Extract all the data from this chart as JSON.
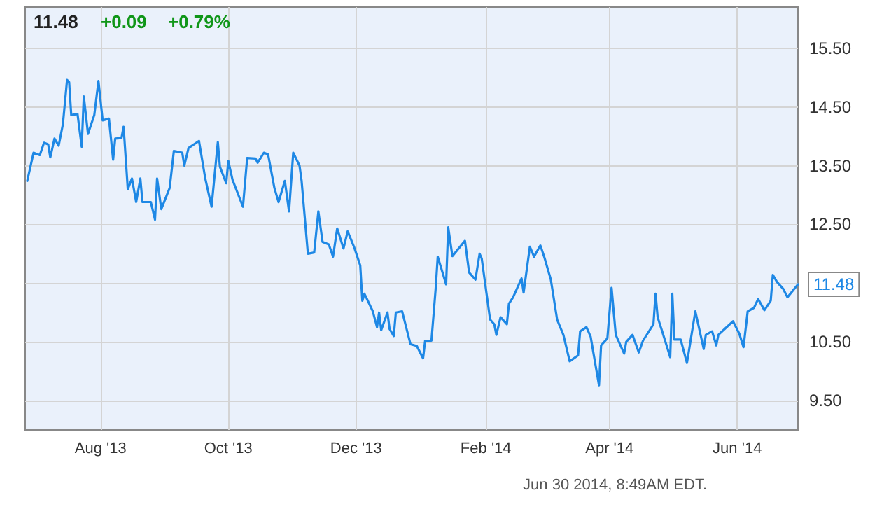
{
  "chart_data": {
    "type": "line",
    "title": "11.48",
    "annotations": [
      "+0.09",
      "+0.79%",
      {
        "text": "11.48",
        "x": "2014-06-30",
        "y": 11.48
      },
      "Jun 30 2014, 8:49AM EDT."
    ],
    "x": [
      "2013-06-27",
      "2013-06-30",
      "2013-07-03",
      "2013-07-05",
      "2013-07-07",
      "2013-07-08",
      "2013-07-10",
      "2013-07-12",
      "2013-07-14",
      "2013-07-16",
      "2013-07-17",
      "2013-07-18",
      "2013-07-21",
      "2013-07-23",
      "2013-07-24",
      "2013-07-26",
      "2013-07-29",
      "2013-07-31",
      "2013-08-02",
      "2013-08-05",
      "2013-08-07",
      "2013-08-08",
      "2013-08-11",
      "2013-08-12",
      "2013-08-14",
      "2013-08-16",
      "2013-08-18",
      "2013-08-20",
      "2013-08-21",
      "2013-08-25",
      "2013-08-27",
      "2013-08-28",
      "2013-08-30",
      "2013-09-03",
      "2013-09-05",
      "2013-09-09",
      "2013-09-10",
      "2013-09-12",
      "2013-09-17",
      "2013-09-20",
      "2013-09-23",
      "2013-09-26",
      "2013-09-27",
      "2013-09-30",
      "2013-10-01",
      "2013-10-03",
      "2013-10-08",
      "2013-10-10",
      "2013-10-14",
      "2013-10-15",
      "2013-10-18",
      "2013-10-20",
      "2013-10-23",
      "2013-10-25",
      "2013-10-28",
      "2013-10-30",
      "2013-11-01",
      "2013-11-04",
      "2013-11-05",
      "2013-11-08",
      "2013-11-11",
      "2013-11-13",
      "2013-11-15",
      "2013-11-18",
      "2013-11-20",
      "2013-11-22",
      "2013-11-25",
      "2013-11-27",
      "2013-11-30",
      "2013-12-03",
      "2013-12-04",
      "2013-12-05",
      "2013-12-09",
      "2013-12-11",
      "2013-12-12",
      "2013-12-13",
      "2013-12-16",
      "2013-12-17",
      "2013-12-19",
      "2013-12-20",
      "2013-12-23",
      "2013-12-27",
      "2013-12-30",
      "2014-01-02",
      "2014-01-03",
      "2014-01-06",
      "2014-01-08",
      "2014-01-09",
      "2014-01-13",
      "2014-01-14",
      "2014-01-16",
      "2014-01-22",
      "2014-01-24",
      "2014-01-27",
      "2014-01-29",
      "2014-01-30",
      "2014-02-01",
      "2014-02-03",
      "2014-02-05",
      "2014-02-06",
      "2014-02-08",
      "2014-02-11",
      "2014-02-12",
      "2014-02-14",
      "2014-02-18",
      "2014-02-19",
      "2014-02-22",
      "2014-02-24",
      "2014-02-27",
      "2014-03-01",
      "2014-03-04",
      "2014-03-07",
      "2014-03-10",
      "2014-03-13",
      "2014-03-17",
      "2014-03-18",
      "2014-03-21",
      "2014-03-23",
      "2014-03-27",
      "2014-03-28",
      "2014-03-31",
      "2014-04-02",
      "2014-04-04",
      "2014-04-08",
      "2014-04-09",
      "2014-04-12",
      "2014-04-15",
      "2014-04-17",
      "2014-04-22",
      "2014-04-23",
      "2014-04-24",
      "2014-04-26",
      "2014-04-30",
      "2014-05-01",
      "2014-05-02",
      "2014-05-05",
      "2014-05-08",
      "2014-05-12",
      "2014-05-16",
      "2014-05-17",
      "2014-05-20",
      "2014-05-22",
      "2014-05-23",
      "2014-05-26",
      "2014-05-30",
      "2014-06-02",
      "2014-06-04",
      "2014-06-06",
      "2014-06-09",
      "2014-06-11",
      "2014-06-14",
      "2014-06-17",
      "2014-06-18",
      "2014-06-20",
      "2014-06-23",
      "2014-06-25",
      "2014-06-30"
    ],
    "series": [
      {
        "color": "#1e88e5",
        "values": [
          13.24,
          13.72,
          13.68,
          13.89,
          13.86,
          13.64,
          13.96,
          13.84,
          14.2,
          14.96,
          14.92,
          14.36,
          14.38,
          13.82,
          14.68,
          14.04,
          14.36,
          14.94,
          14.27,
          14.3,
          13.6,
          13.96,
          13.97,
          14.16,
          13.1,
          13.28,
          12.88,
          13.28,
          12.88,
          12.88,
          12.58,
          13.28,
          12.76,
          13.12,
          13.75,
          13.72,
          13.5,
          13.8,
          13.92,
          13.28,
          12.8,
          13.9,
          13.48,
          13.2,
          13.58,
          13.26,
          12.8,
          13.63,
          13.62,
          13.55,
          13.72,
          13.69,
          13.12,
          12.88,
          13.24,
          12.72,
          13.72,
          13.5,
          13.24,
          12.0,
          12.02,
          12.72,
          12.2,
          12.16,
          11.95,
          12.43,
          12.09,
          12.38,
          12.12,
          11.8,
          11.2,
          11.32,
          11.02,
          10.75,
          11.0,
          10.7,
          11.0,
          10.72,
          10.6,
          11.0,
          11.02,
          10.46,
          10.43,
          10.22,
          10.52,
          10.52,
          11.4,
          11.95,
          11.48,
          12.45,
          11.96,
          12.22,
          11.68,
          11.56,
          12.0,
          11.92,
          11.4,
          10.88,
          10.8,
          10.62,
          10.92,
          10.8,
          11.15,
          11.26,
          11.58,
          11.34,
          12.12,
          11.95,
          12.14,
          11.93,
          11.56,
          10.88,
          10.62,
          10.17,
          10.27,
          10.68,
          10.75,
          10.59,
          9.76,
          10.44,
          10.56,
          11.42,
          10.62,
          10.3,
          10.5,
          10.62,
          10.32,
          10.52,
          10.8,
          11.32,
          10.92,
          10.7,
          10.24,
          11.32,
          10.54,
          10.54,
          10.14,
          11.02,
          10.38,
          10.62,
          10.68,
          10.44,
          10.62,
          10.72,
          10.85,
          10.64,
          10.41,
          11.02,
          11.08,
          11.23,
          11.04,
          11.2,
          11.64,
          11.52,
          11.4,
          11.26,
          11.48
        ]
      }
    ],
    "xlim": [
      "2013-06-26",
      "2014-06-30"
    ],
    "xticks": [
      {
        "value": "2013-08-01",
        "label": "Aug '13"
      },
      {
        "value": "2013-10-01",
        "label": "Oct '13"
      },
      {
        "value": "2013-12-01",
        "label": "Dec '13"
      },
      {
        "value": "2014-02-01",
        "label": "Feb '14"
      },
      {
        "value": "2014-04-01",
        "label": "Apr '14"
      },
      {
        "value": "2014-06-01",
        "label": "Jun '14"
      }
    ],
    "ylim": [
      9.0,
      16.2
    ],
    "yticks": [
      {
        "value": 9.5,
        "label": "9.50"
      },
      {
        "value": 10.5,
        "label": "10.50"
      },
      {
        "value": 11.5,
        "label": null
      },
      {
        "value": 12.5,
        "label": "12.50"
      },
      {
        "value": 13.5,
        "label": "13.50"
      },
      {
        "value": 14.5,
        "label": "14.50"
      },
      {
        "value": 15.5,
        "label": "15.50"
      }
    ],
    "grid": true,
    "marker": "none",
    "line_style": "solid"
  }
}
